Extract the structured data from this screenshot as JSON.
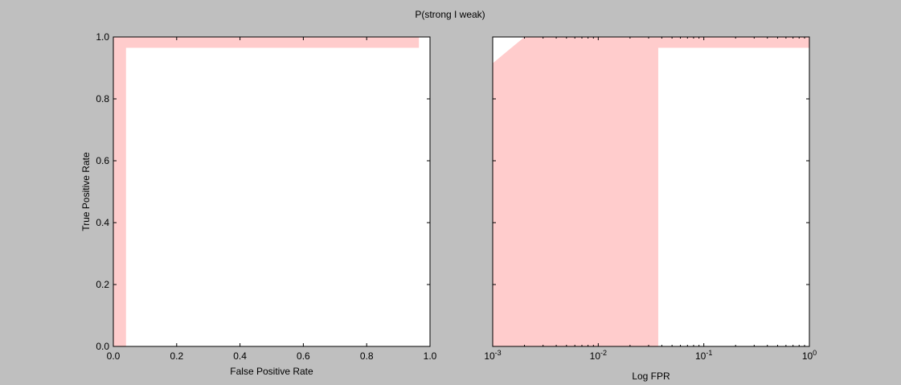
{
  "figure": {
    "title": "P(strong I weak)",
    "background": "#bfbfbf",
    "band_color": "#ffcccc"
  },
  "chart_data": [
    {
      "type": "area",
      "name": "roc-linear",
      "xlabel": "False Positive Rate",
      "ylabel": "True Positive Rate",
      "xscale": "linear",
      "xlim": [
        0.0,
        1.0
      ],
      "ylim": [
        0.0,
        1.0
      ],
      "xticks": [
        0.0,
        0.2,
        0.4,
        0.6,
        0.8,
        1.0
      ],
      "xtick_labels": [
        "0.0",
        "0.2",
        "0.4",
        "0.6",
        "0.8",
        "1.0"
      ],
      "yticks": [
        0.0,
        0.2,
        0.4,
        0.6,
        0.8,
        1.0
      ],
      "ytick_labels": [
        "0.0",
        "0.2",
        "0.4",
        "0.6",
        "0.8",
        "1.0"
      ],
      "band": {
        "upper": [
          [
            0.0,
            0.0
          ],
          [
            0.0,
            1.0
          ],
          [
            0.965,
            1.0
          ]
        ],
        "lower": [
          [
            0.965,
            0.965
          ],
          [
            0.04,
            0.965
          ],
          [
            0.04,
            0.0
          ]
        ]
      }
    },
    {
      "type": "area",
      "name": "roc-log",
      "xlabel": "Log FPR",
      "ylabel": "",
      "xscale": "log",
      "xlim": [
        0.001,
        1.0
      ],
      "ylim": [
        0.0,
        1.0
      ],
      "xticks": [
        0.001,
        0.01,
        0.1,
        1.0
      ],
      "xtick_labels": [
        {
          "base": "10",
          "exp": "-3"
        },
        {
          "base": "10",
          "exp": "-2"
        },
        {
          "base": "10",
          "exp": "-1"
        },
        {
          "base": "10",
          "exp": "0"
        }
      ],
      "yticks": [
        0.0,
        0.2,
        0.4,
        0.6,
        0.8,
        1.0
      ],
      "ytick_labels": [],
      "band": {
        "upper": [
          [
            0.001,
            0.0
          ],
          [
            0.001,
            0.915
          ],
          [
            0.002,
            1.0
          ],
          [
            1.0,
            1.0
          ]
        ],
        "lower": [
          [
            1.0,
            0.965
          ],
          [
            0.037,
            0.965
          ],
          [
            0.037,
            0.0
          ]
        ]
      }
    }
  ]
}
